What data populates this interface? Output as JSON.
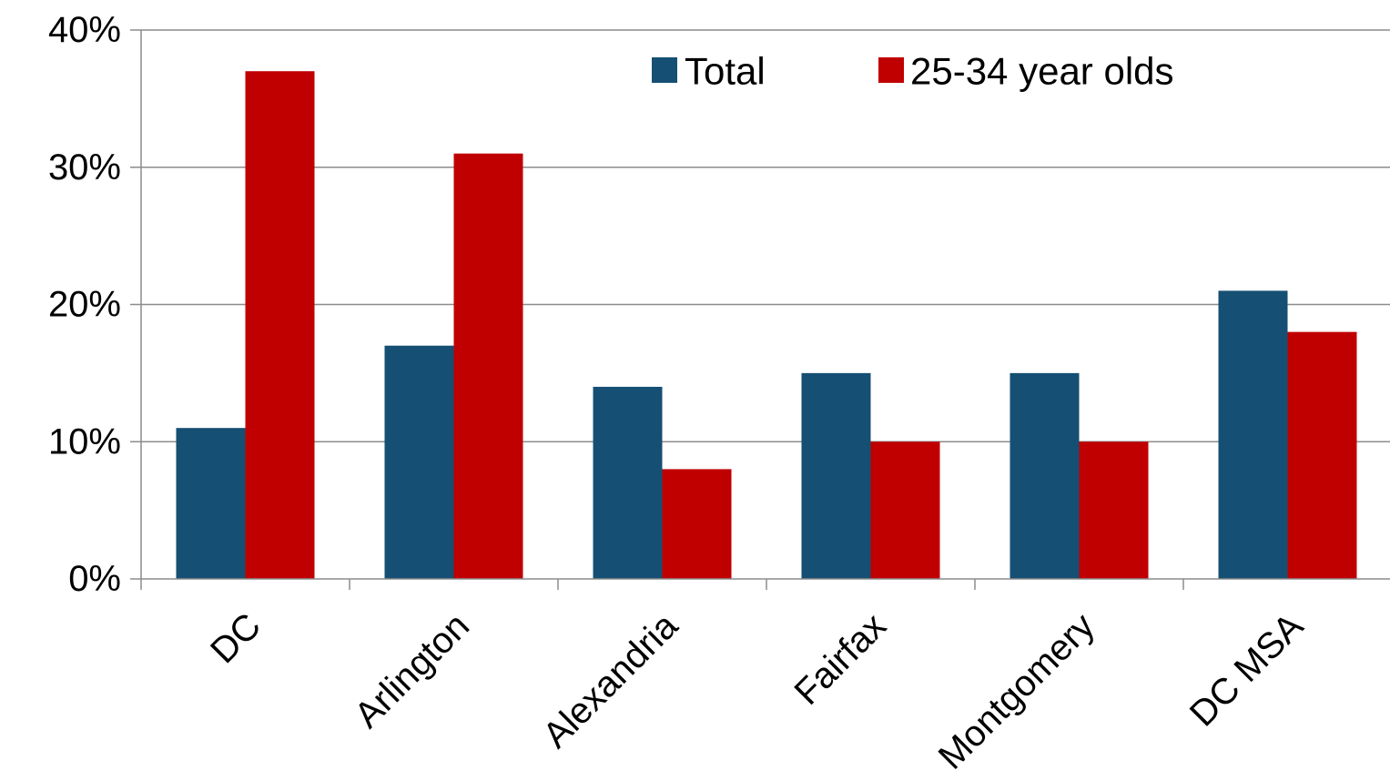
{
  "chart_data": {
    "type": "bar",
    "title": "",
    "xlabel": "",
    "ylabel": "",
    "categories": [
      "DC",
      "Arlington",
      "Alexandria",
      "Fairfax",
      "Montgomery",
      "DC MSA"
    ],
    "series": [
      {
        "name": "Total",
        "color": "#154f73",
        "values": [
          11,
          17,
          14,
          15,
          15,
          21
        ]
      },
      {
        "name": "25-34 year olds",
        "color": "#c00000",
        "values": [
          37,
          31,
          8,
          10,
          10,
          18
        ]
      }
    ],
    "ylim": [
      0,
      40
    ],
    "yticks": [
      {
        "value": 0,
        "label": "0%"
      },
      {
        "value": 10,
        "label": "10%"
      },
      {
        "value": 20,
        "label": "20%"
      },
      {
        "value": 30,
        "label": "30%"
      },
      {
        "value": 40,
        "label": "40%"
      }
    ],
    "grid": true,
    "gridColor": "#8c8c8c",
    "legend": "top-right",
    "xTickRotation": -45
  }
}
